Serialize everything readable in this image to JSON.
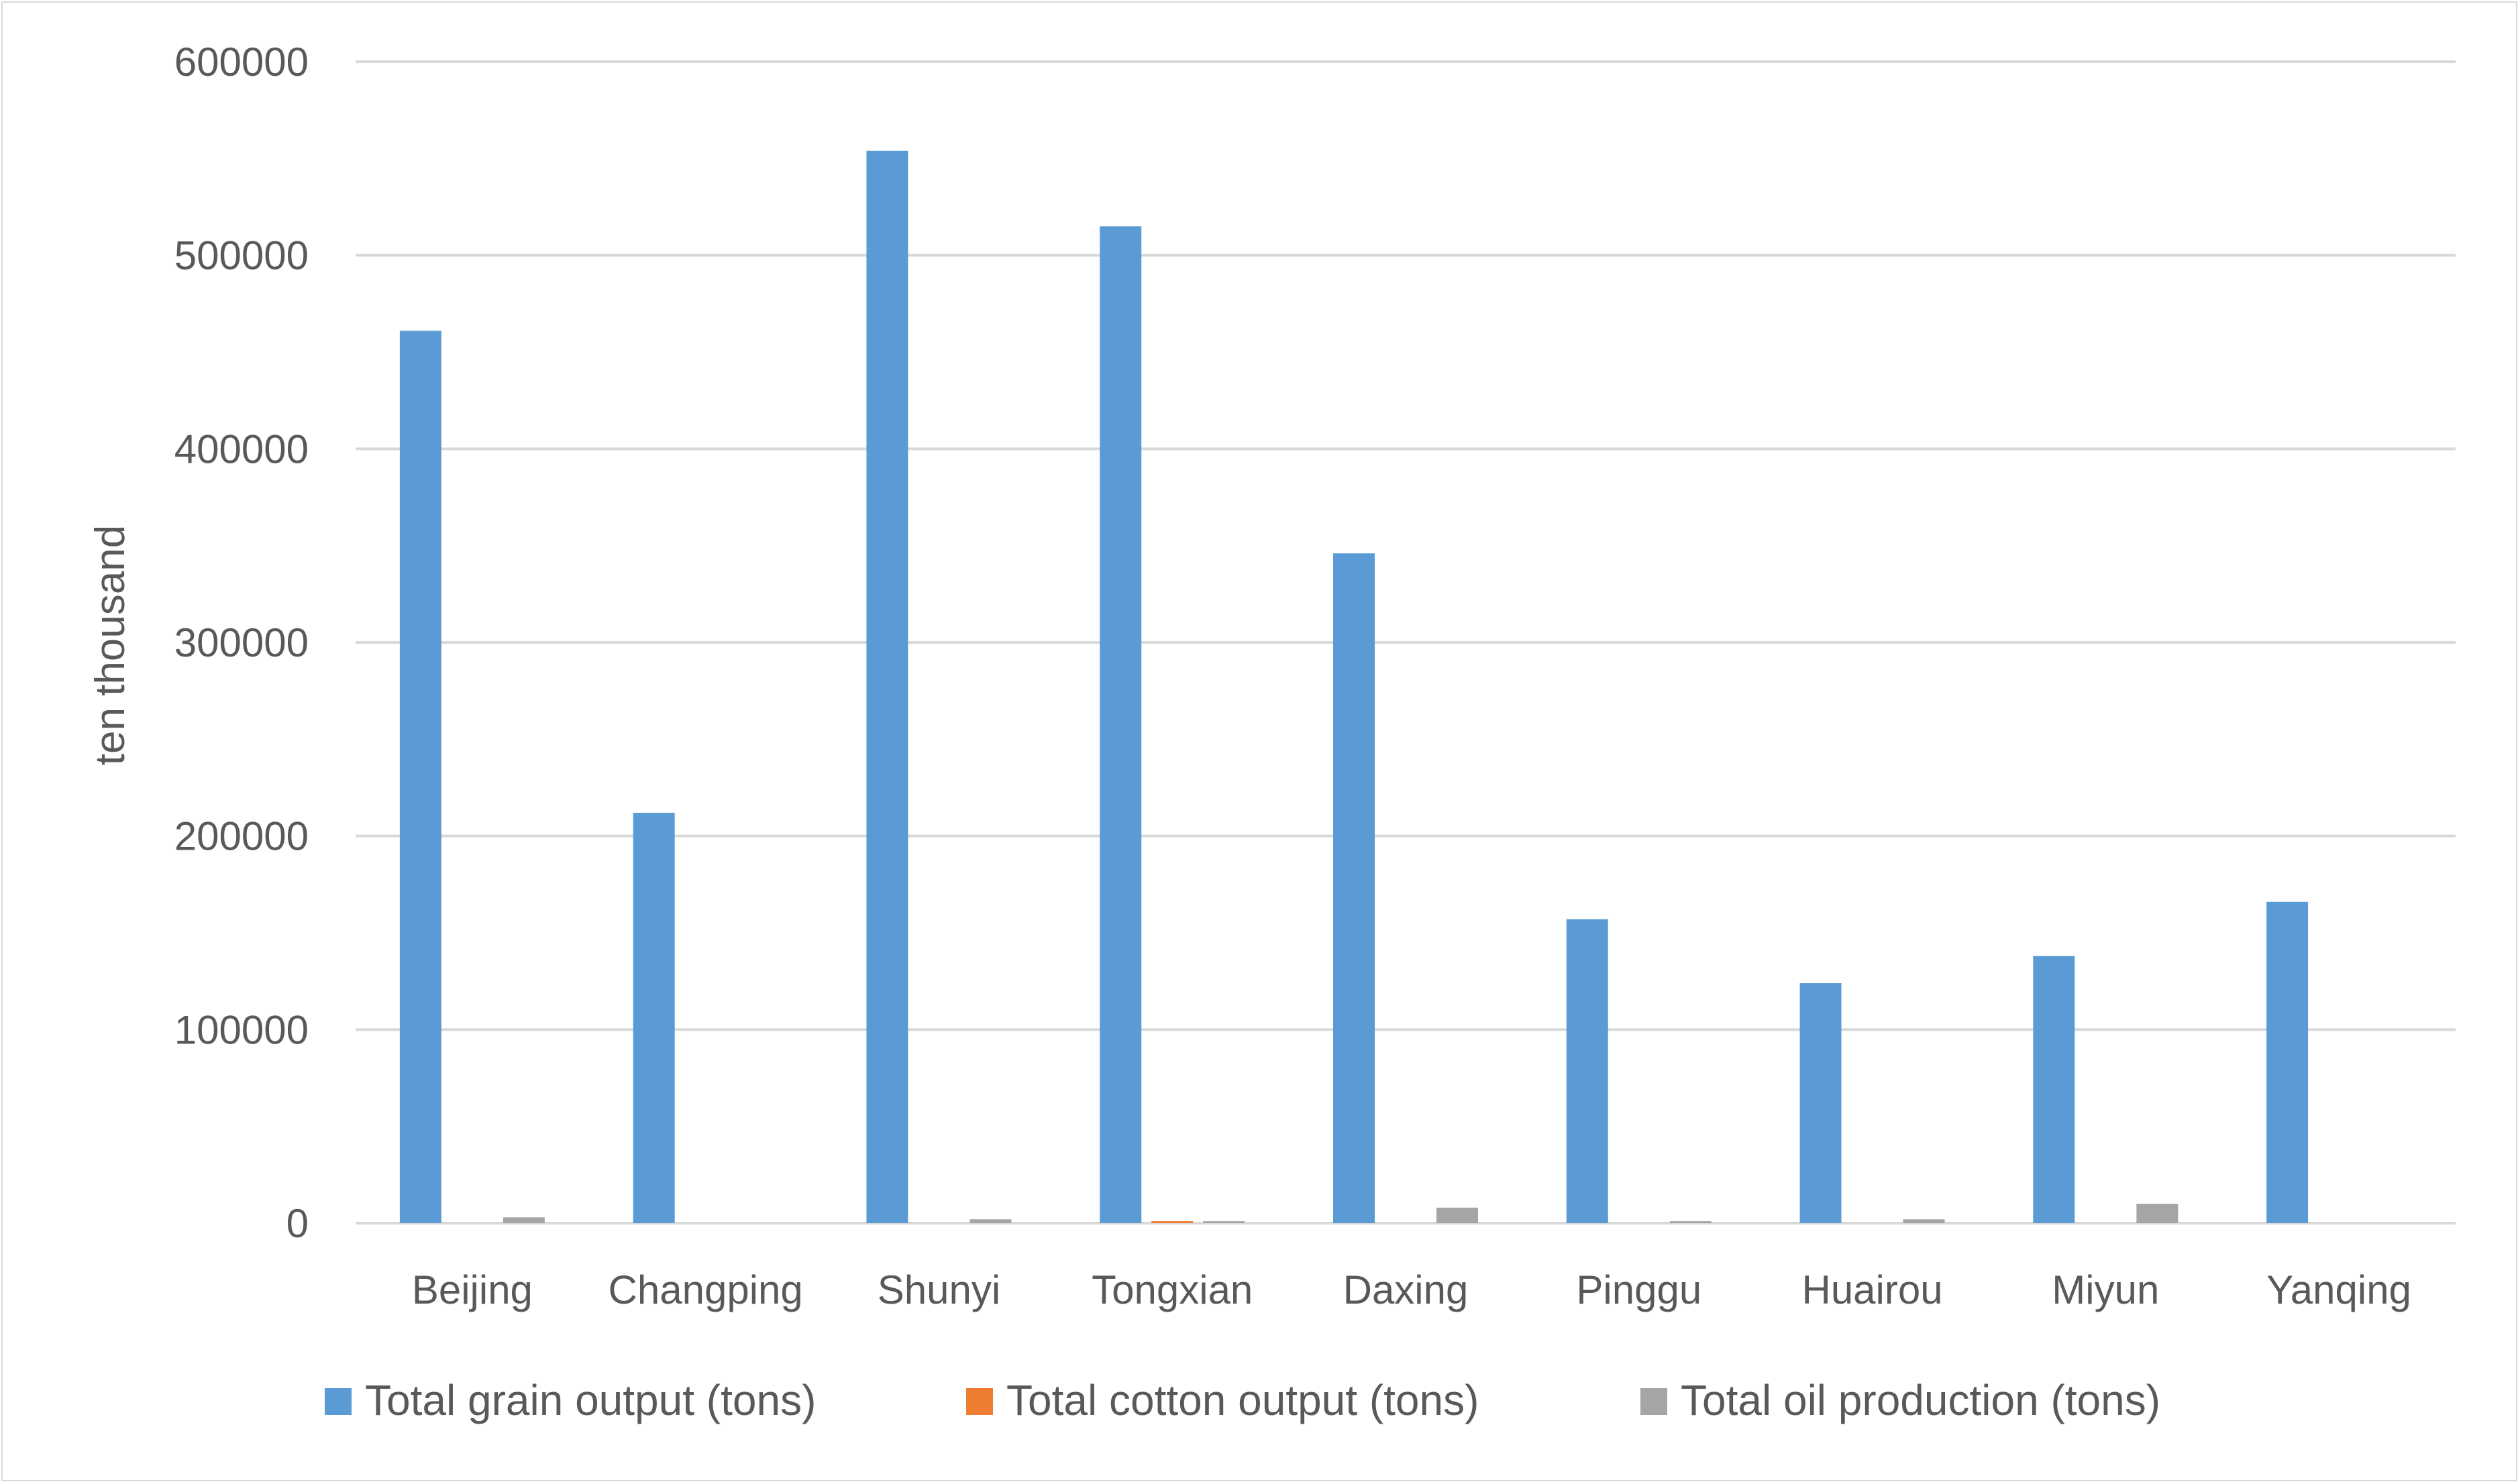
{
  "chart_data": {
    "type": "bar",
    "ylabel": "ten thousand",
    "ylim": [
      0,
      600000
    ],
    "yticks": [
      0,
      100000,
      200000,
      300000,
      400000,
      500000,
      600000
    ],
    "grid": true,
    "legend_position": "bottom",
    "categories": [
      "Beijing",
      "Changping",
      "Shunyi",
      "Tongxian",
      "Daxing",
      "Pinggu",
      "Huairou",
      "Miyun",
      "Yanqing"
    ],
    "series": [
      {
        "name": "Total grain output (tons)",
        "color": "#5b9bd5",
        "values": [
          461000,
          212000,
          554000,
          515000,
          346000,
          157000,
          124000,
          138000,
          166000
        ]
      },
      {
        "name": "Total cotton output (tons)",
        "color": "#ed7d31",
        "values": [
          0,
          0,
          0,
          1000,
          0,
          0,
          0,
          0,
          0
        ]
      },
      {
        "name": "Total oil production (tons)",
        "color": "#a5a5a5",
        "values": [
          3000,
          0,
          2000,
          1000,
          8000,
          1000,
          2000,
          10000,
          0
        ]
      }
    ]
  }
}
